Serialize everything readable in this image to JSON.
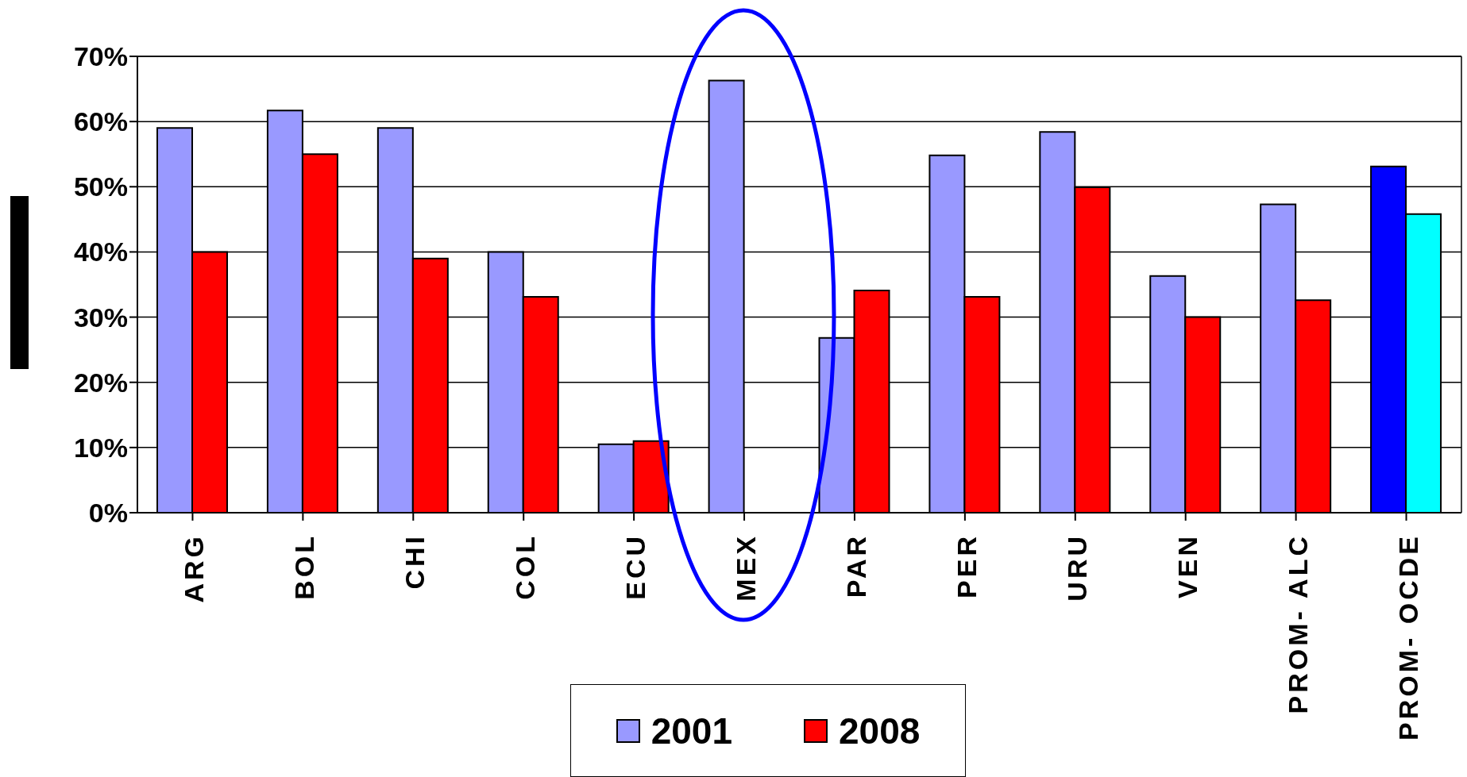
{
  "chart_data": {
    "type": "bar",
    "categories": [
      "ARG",
      "BOL",
      "CHI",
      "COL",
      "ECU",
      "MEX",
      "PAR",
      "PER",
      "URU",
      "VEN",
      "PROM- ALC",
      "PROM- OCDE"
    ],
    "series": [
      {
        "name": "2001",
        "color": "#9999ff",
        "colors": [
          "#9999ff",
          "#9999ff",
          "#9999ff",
          "#9999ff",
          "#9999ff",
          "#9999ff",
          "#9999ff",
          "#9999ff",
          "#9999ff",
          "#9999ff",
          "#9999ff",
          "#0000ff"
        ],
        "values": [
          59,
          61.7,
          59,
          40,
          10.5,
          66.3,
          26.8,
          54.8,
          58.4,
          36.3,
          47.3,
          53.1
        ]
      },
      {
        "name": "2008",
        "color": "#ff0000",
        "colors": [
          "#ff0000",
          "#ff0000",
          "#ff0000",
          "#ff0000",
          "#ff0000",
          "#ff0000",
          "#ff0000",
          "#ff0000",
          "#ff0000",
          "#ff0000",
          "#ff0000",
          "#00ffff"
        ],
        "values": [
          40,
          55,
          39,
          33.1,
          11,
          null,
          34.1,
          33.1,
          49.9,
          30,
          32.6,
          45.8
        ]
      }
    ],
    "ylim": [
      0,
      70
    ],
    "yticks": [
      {
        "value": 0,
        "label": "0%"
      },
      {
        "value": 10,
        "label": "10%"
      },
      {
        "value": 20,
        "label": "20%"
      },
      {
        "value": 30,
        "label": "30%"
      },
      {
        "value": 40,
        "label": "40%"
      },
      {
        "value": 50,
        "label": "50%"
      },
      {
        "value": 60,
        "label": "60%"
      },
      {
        "value": 70,
        "label": "70%"
      }
    ],
    "grid": "y",
    "legend": "bottom"
  }
}
